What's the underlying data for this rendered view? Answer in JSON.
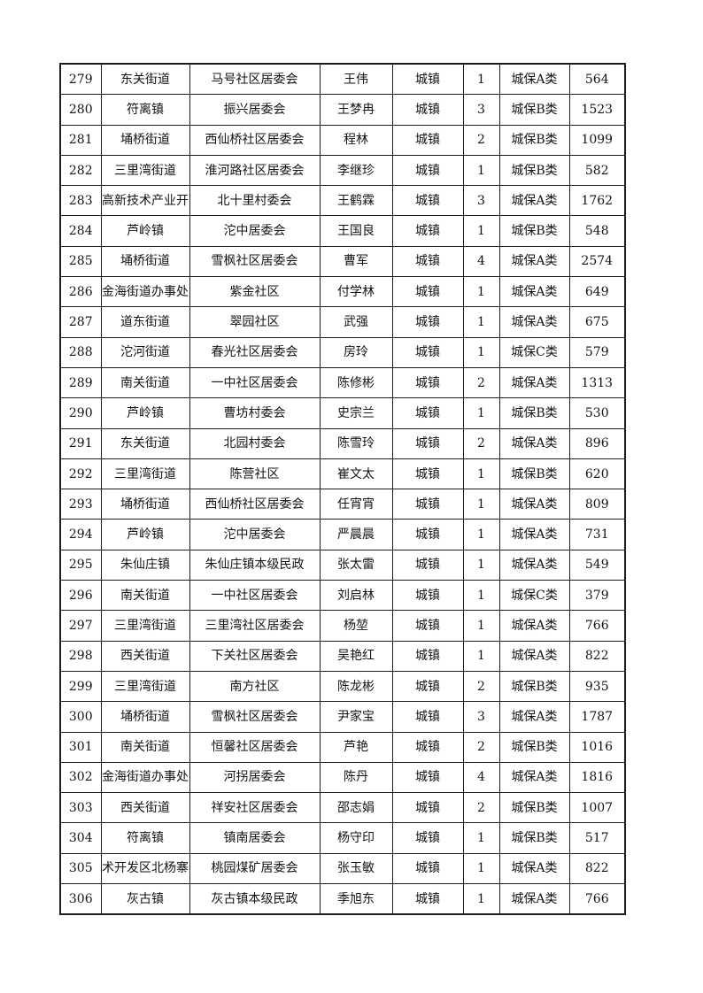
{
  "page": {
    "background_color": "#ffffff",
    "grid_line_color": "#1c1c1c",
    "text_color": "#141414"
  },
  "table": {
    "rows": [
      [
        "279",
        "东关街道",
        "马号社区居委会",
        "王伟",
        "城镇",
        "1",
        "城保A类",
        "564"
      ],
      [
        "280",
        "符离镇",
        "振兴居委会",
        "王梦冉",
        "城镇",
        "3",
        "城保B类",
        "1523"
      ],
      [
        "281",
        "埇桥街道",
        "西仙桥社区居委会",
        "程林",
        "城镇",
        "2",
        "城保B类",
        "1099"
      ],
      [
        "282",
        "三里湾街道",
        "淮河路社区居委会",
        "李继珍",
        "城镇",
        "1",
        "城保B类",
        "582"
      ],
      [
        "283",
        "高新技术产业开",
        "北十里村委会",
        "王鹤霖",
        "城镇",
        "3",
        "城保A类",
        "1762"
      ],
      [
        "284",
        "芦岭镇",
        "沱中居委会",
        "王国良",
        "城镇",
        "1",
        "城保B类",
        "548"
      ],
      [
        "285",
        "埇桥街道",
        "雪枫社区居委会",
        "曹军",
        "城镇",
        "4",
        "城保A类",
        "2574"
      ],
      [
        "286",
        "金海街道办事处",
        "紫金社区",
        "付学林",
        "城镇",
        "1",
        "城保A类",
        "649"
      ],
      [
        "287",
        "道东街道",
        "翠园社区",
        "武强",
        "城镇",
        "1",
        "城保A类",
        "675"
      ],
      [
        "288",
        "沱河街道",
        "春光社区居委会",
        "房玲",
        "城镇",
        "1",
        "城保C类",
        "579"
      ],
      [
        "289",
        "南关街道",
        "一中社区居委会",
        "陈修彬",
        "城镇",
        "2",
        "城保A类",
        "1313"
      ],
      [
        "290",
        "芦岭镇",
        "曹坊村委会",
        "史宗兰",
        "城镇",
        "1",
        "城保B类",
        "530"
      ],
      [
        "291",
        "东关街道",
        "北园村委会",
        "陈雪玲",
        "城镇",
        "2",
        "城保A类",
        "896"
      ],
      [
        "292",
        "三里湾街道",
        "陈营社区",
        "崔文太",
        "城镇",
        "1",
        "城保B类",
        "620"
      ],
      [
        "293",
        "埇桥街道",
        "西仙桥社区居委会",
        "任宵宵",
        "城镇",
        "1",
        "城保A类",
        "809"
      ],
      [
        "294",
        "芦岭镇",
        "沱中居委会",
        "严晨晨",
        "城镇",
        "1",
        "城保A类",
        "731"
      ],
      [
        "295",
        "朱仙庄镇",
        "朱仙庄镇本级民政",
        "张太雷",
        "城镇",
        "1",
        "城保A类",
        "549"
      ],
      [
        "296",
        "南关街道",
        "一中社区居委会",
        "刘启林",
        "城镇",
        "1",
        "城保C类",
        "379"
      ],
      [
        "297",
        "三里湾街道",
        "三里湾社区居委会",
        "杨堃",
        "城镇",
        "1",
        "城保A类",
        "766"
      ],
      [
        "298",
        "西关街道",
        "下关社区居委会",
        "吴艳红",
        "城镇",
        "1",
        "城保A类",
        "822"
      ],
      [
        "299",
        "三里湾街道",
        "南方社区",
        "陈龙彬",
        "城镇",
        "2",
        "城保B类",
        "935"
      ],
      [
        "300",
        "埇桥街道",
        "雪枫社区居委会",
        "尹家宝",
        "城镇",
        "3",
        "城保A类",
        "1787"
      ],
      [
        "301",
        "南关街道",
        "恒馨社区居委会",
        "芦艳",
        "城镇",
        "2",
        "城保B类",
        "1016"
      ],
      [
        "302",
        "金海街道办事处",
        "河拐居委会",
        "陈丹",
        "城镇",
        "4",
        "城保A类",
        "1816"
      ],
      [
        "303",
        "西关街道",
        "祥安社区居委会",
        "邵志娟",
        "城镇",
        "2",
        "城保B类",
        "1007"
      ],
      [
        "304",
        "符离镇",
        "镇南居委会",
        "杨守印",
        "城镇",
        "1",
        "城保B类",
        "517"
      ],
      [
        "305",
        "术开发区北杨寨",
        "桃园煤矿居委会",
        "张玉敏",
        "城镇",
        "1",
        "城保A类",
        "822"
      ],
      [
        "306",
        "灰古镇",
        "灰古镇本级民政",
        "季旭东",
        "城镇",
        "1",
        "城保A类",
        "766"
      ]
    ]
  }
}
